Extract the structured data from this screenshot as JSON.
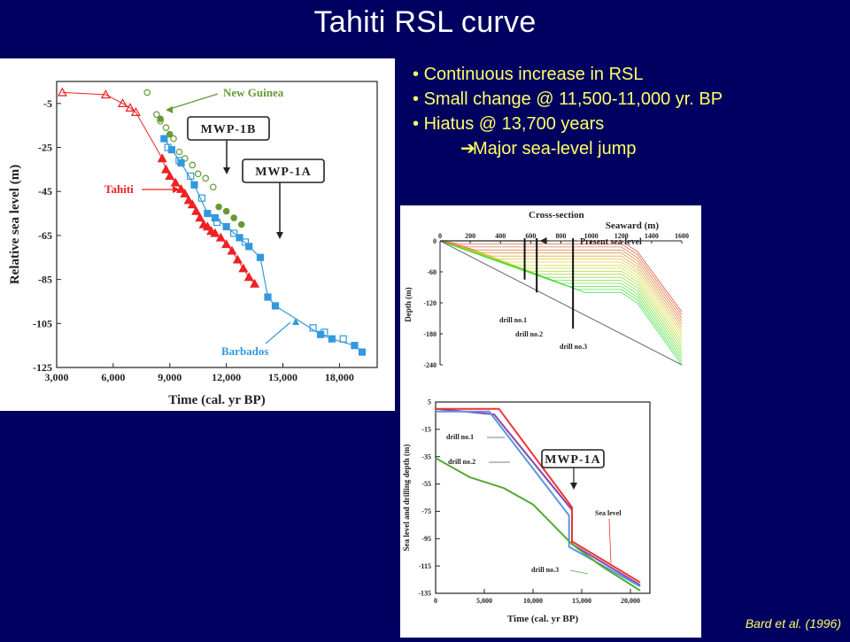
{
  "slide": {
    "title": "Tahiti RSL curve",
    "bullets": [
      "Continuous increase in RSL",
      "Small change @ 11,500-11,000 yr. BP",
      "Hiatus @ 13,700 years"
    ],
    "sub_bullet": "Major sea-level jump",
    "citation": "Bard et al. (1996)",
    "colors": {
      "background": "#000060",
      "title": "#ffffff",
      "bullet_text": "#ffff66",
      "tahiti": "#ee2222",
      "barbados": "#3399dd",
      "new_guinea": "#669933"
    }
  },
  "chart_data": [
    {
      "type": "scatter",
      "xlabel": "Time (cal. yr BP)",
      "ylabel": "Relative sea level (m)",
      "xlim": [
        3000,
        20000
      ],
      "ylim": [
        -125,
        5
      ],
      "x_ticks": [
        3000,
        6000,
        9000,
        12000,
        15000,
        18000
      ],
      "x_tick_labels": [
        "3,000",
        "6,000",
        "9,000",
        "12,000",
        "15,000",
        "18,000"
      ],
      "y_ticks": [
        -5,
        -25,
        -45,
        -65,
        -85,
        -105,
        -125
      ],
      "y_tick_labels": [
        "-5",
        "-25",
        "-45",
        "-65",
        "-85",
        "-105",
        "-125"
      ],
      "annotations": [
        {
          "text": "New Guinea",
          "color": "#669933"
        },
        {
          "text": "MWP-1B",
          "boxed": true
        },
        {
          "text": "MWP-1A",
          "boxed": true
        },
        {
          "text": "Tahiti",
          "color": "#ee2222"
        },
        {
          "text": "Barbados",
          "color": "#3399dd"
        }
      ],
      "series": [
        {
          "name": "Tahiti",
          "marker": "triangle",
          "color": "#ee2222",
          "open_points": [
            [
              3300,
              0
            ],
            [
              5600,
              -1
            ],
            [
              6500,
              -5
            ],
            [
              6900,
              -7
            ],
            [
              7200,
              -9
            ]
          ],
          "filled_points": [
            [
              8600,
              -30
            ],
            [
              8800,
              -35
            ],
            [
              9000,
              -38
            ],
            [
              9300,
              -41
            ],
            [
              9600,
              -44
            ],
            [
              9800,
              -46
            ],
            [
              10000,
              -49
            ],
            [
              10200,
              -51
            ],
            [
              10400,
              -54
            ],
            [
              10600,
              -57
            ],
            [
              10800,
              -60
            ],
            [
              11000,
              -61
            ],
            [
              11200,
              -63
            ],
            [
              11400,
              -64
            ],
            [
              11700,
              -66
            ],
            [
              12000,
              -69
            ],
            [
              12300,
              -72
            ],
            [
              12600,
              -76
            ],
            [
              12900,
              -80
            ],
            [
              13200,
              -84
            ],
            [
              13500,
              -87
            ]
          ]
        },
        {
          "name": "Barbados",
          "marker": "square",
          "color": "#3399dd",
          "filled_points": [
            [
              8700,
              -21
            ],
            [
              9100,
              -26
            ],
            [
              9600,
              -32
            ],
            [
              10300,
              -42
            ],
            [
              11000,
              -55
            ],
            [
              11400,
              -57
            ],
            [
              12000,
              -61
            ],
            [
              12700,
              -66
            ],
            [
              13200,
              -70
            ],
            [
              13800,
              -75
            ],
            [
              14200,
              -93
            ],
            [
              14600,
              -97
            ],
            [
              17000,
              -110
            ],
            [
              17600,
              -112
            ],
            [
              18800,
              -115
            ],
            [
              19200,
              -118
            ]
          ],
          "open_points": [
            [
              8900,
              -25
            ],
            [
              9500,
              -31
            ],
            [
              10100,
              -38
            ],
            [
              10700,
              -48
            ],
            [
              11500,
              -59
            ],
            [
              12400,
              -64
            ],
            [
              13000,
              -68
            ],
            [
              16600,
              -107
            ],
            [
              17200,
              -109
            ],
            [
              18200,
              -112
            ]
          ]
        },
        {
          "name": "New Guinea",
          "marker": "circle",
          "color": "#669933",
          "open_points": [
            [
              7800,
              0
            ],
            [
              8300,
              -10
            ],
            [
              8500,
              -13
            ],
            [
              8800,
              -16
            ],
            [
              9200,
              -21
            ],
            [
              9500,
              -27
            ],
            [
              9800,
              -30
            ],
            [
              10200,
              -33
            ],
            [
              10500,
              -37
            ],
            [
              10900,
              -39
            ],
            [
              11300,
              -43
            ]
          ],
          "filled_points": [
            [
              8500,
              -12
            ],
            [
              9000,
              -19
            ],
            [
              11600,
              -52
            ],
            [
              12000,
              -54
            ],
            [
              12400,
              -57
            ],
            [
              12800,
              -60
            ]
          ]
        }
      ]
    },
    {
      "type": "line",
      "title": "Cross-section",
      "xlabel": "Seaward (m)",
      "ylabel": "Depth (m)",
      "xlim": [
        0,
        1600
      ],
      "ylim": [
        -240,
        0
      ],
      "x_ticks": [
        0,
        200,
        400,
        600,
        800,
        1000,
        1200,
        1400,
        1600
      ],
      "x_tick_labels": [
        "0",
        "200",
        "400",
        "600",
        "800",
        "1000",
        "1200",
        "1400",
        "1600"
      ],
      "y_ticks": [
        0,
        -60,
        -120,
        -180,
        -240
      ],
      "y_tick_labels": [
        "0",
        "-60",
        "-120",
        "-180",
        "-240"
      ],
      "annotations": [
        "Present sea level",
        "drill no.1",
        "drill no.2",
        "drill no.3"
      ],
      "drill_sites_x": [
        560,
        640,
        880
      ],
      "shelf_edge_x": 1200,
      "shelf_edge_depth": -100,
      "lowest_level_depth": -120,
      "basin_end": [
        1600,
        -240
      ]
    },
    {
      "type": "line",
      "xlabel": "Time (cal. yr BP)",
      "ylabel": "Sea level and drilling depth (m)",
      "xlim": [
        0,
        22000
      ],
      "ylim": [
        -135,
        5
      ],
      "x_ticks": [
        0,
        5000,
        10000,
        15000,
        20000
      ],
      "x_tick_labels": [
        "0",
        "5,000",
        "10,000",
        "15,000",
        "20,000"
      ],
      "y_ticks": [
        5,
        -15,
        -35,
        -55,
        -75,
        -95,
        -115,
        -135
      ],
      "y_tick_labels": [
        "5",
        "-15",
        "-35",
        "-55",
        "-75",
        "-95",
        "-115",
        "-135"
      ],
      "annotations": [
        {
          "text": "drill no.1"
        },
        {
          "text": "drill no.2"
        },
        {
          "text": "MWP-1A",
          "boxed": true
        },
        {
          "text": "Sea level"
        },
        {
          "text": "drill no.3"
        }
      ],
      "series": [
        {
          "color": "#8844aa",
          "x": [
            0,
            6000,
            14000,
            14000,
            21000
          ],
          "y": [
            0,
            -4,
            -74,
            -99,
            -129
          ]
        },
        {
          "color": "#ee3333",
          "x": [
            0,
            6500,
            14000,
            14000,
            21000
          ],
          "y": [
            0,
            0,
            -72,
            -97,
            -127
          ]
        },
        {
          "color": "#5599dd",
          "x": [
            0,
            5500,
            13700,
            13700,
            21000
          ],
          "y": [
            -2,
            -2,
            -78,
            -101,
            -130
          ]
        },
        {
          "color": "#55aa33",
          "x": [
            0,
            3500,
            7000,
            10000,
            14000,
            17000,
            21000
          ],
          "y": [
            -36,
            -50,
            -58,
            -70,
            -99,
            -115,
            -133
          ]
        }
      ]
    }
  ]
}
